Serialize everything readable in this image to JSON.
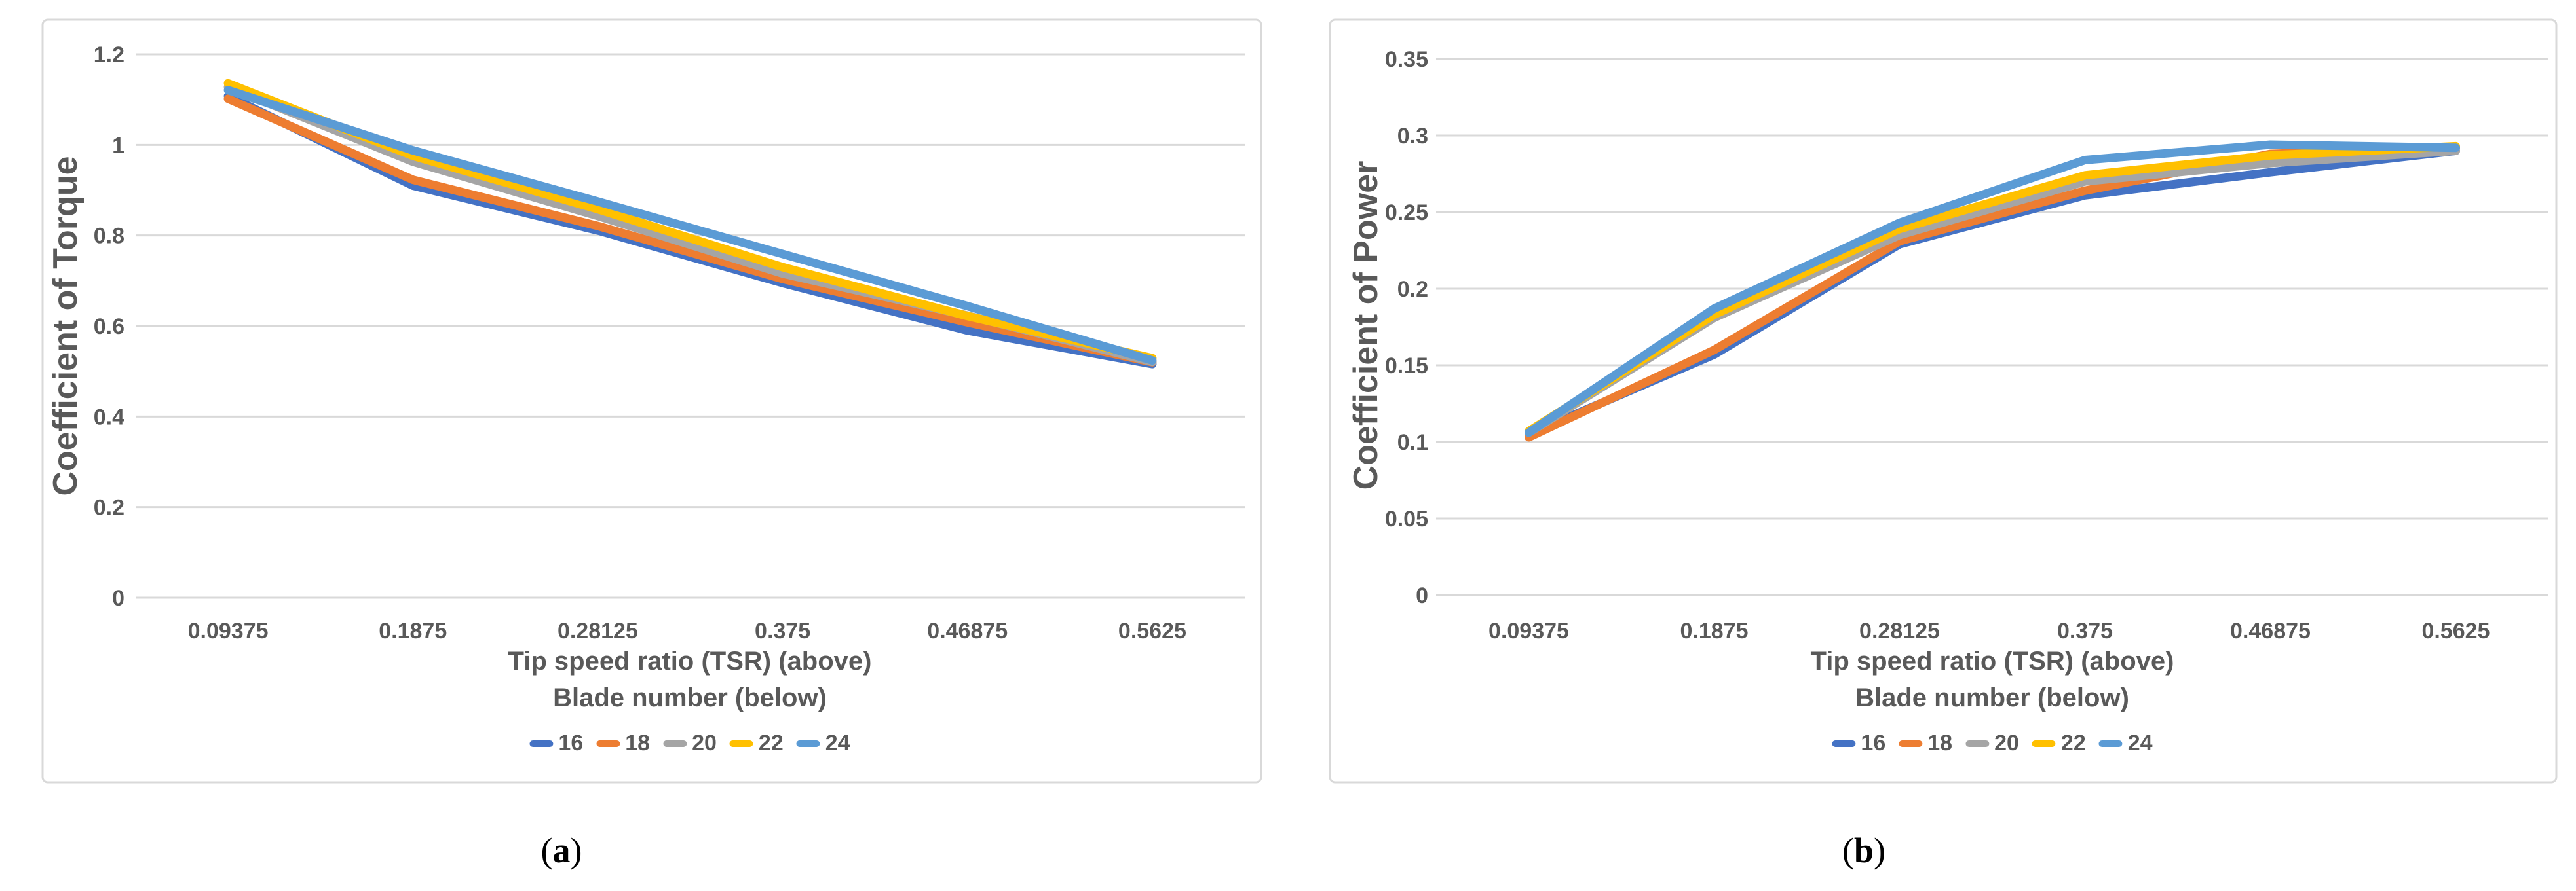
{
  "figure_captions": [
    {
      "open": "(",
      "letter": "a",
      "close": ")"
    },
    {
      "open": "(",
      "letter": "b",
      "close": ")"
    }
  ],
  "colors": {
    "grid": "#D9D9D9",
    "border": "#D9D9D9",
    "text": "#595959"
  },
  "chart_data": [
    {
      "type": "line",
      "title": "",
      "ylabel": "Coefficient of Torque",
      "xlabel_line1": "Tip speed ratio (TSR) (above)",
      "xlabel_line2": "Blade number (below)",
      "categories": [
        "0.09375",
        "0.1875",
        "0.28125",
        "0.375",
        "0.46875",
        "0.5625"
      ],
      "x_values": [
        0.09375,
        0.1875,
        0.28125,
        0.375,
        0.46875,
        0.5625
      ],
      "ylim": [
        0,
        1.2
      ],
      "grid": true,
      "legend_position": "bottom",
      "yticks": [
        {
          "label": "0",
          "value": 0
        },
        {
          "label": "0.2",
          "value": 0.2
        },
        {
          "label": "0.4",
          "value": 0.4
        },
        {
          "label": "0.6",
          "value": 0.6
        },
        {
          "label": "0.8",
          "value": 0.8
        },
        {
          "label": "1",
          "value": 1
        },
        {
          "label": "1.2",
          "value": 1.2
        }
      ],
      "series": [
        {
          "name": "16",
          "color": "#4472C4",
          "values": [
            1.108,
            0.91,
            0.811,
            0.695,
            0.59,
            0.516
          ]
        },
        {
          "name": "18",
          "color": "#ED7D31",
          "values": [
            1.102,
            0.923,
            0.821,
            0.704,
            0.608,
            0.52
          ]
        },
        {
          "name": "20",
          "color": "#A5A5A5",
          "values": [
            1.128,
            0.963,
            0.843,
            0.716,
            0.623,
            0.521
          ]
        },
        {
          "name": "22",
          "color": "#FFC000",
          "values": [
            1.136,
            0.976,
            0.858,
            0.73,
            0.622,
            0.529
          ]
        },
        {
          "name": "24",
          "color": "#5B9BD5",
          "values": [
            1.121,
            0.988,
            0.875,
            0.759,
            0.644,
            0.524
          ]
        }
      ]
    },
    {
      "type": "line",
      "title": "",
      "ylabel": "Coefficient of Power",
      "xlabel_line1": "Tip speed ratio (TSR) (above)",
      "xlabel_line2": "Blade number (below)",
      "categories": [
        "0.09375",
        "0.1875",
        "0.28125",
        "0.375",
        "0.46875",
        "0.5625"
      ],
      "x_values": [
        0.09375,
        0.1875,
        0.28125,
        0.375,
        0.46875,
        0.5625
      ],
      "ylim": [
        0,
        0.35
      ],
      "grid": true,
      "legend_position": "bottom",
      "yticks": [
        {
          "label": "0",
          "value": 0
        },
        {
          "label": "0.05",
          "value": 0.05
        },
        {
          "label": "0.1",
          "value": 0.1
        },
        {
          "label": "0.15",
          "value": 0.15
        },
        {
          "label": "0.2",
          "value": 0.2
        },
        {
          "label": "0.25",
          "value": 0.25
        },
        {
          "label": "0.3",
          "value": 0.3
        },
        {
          "label": "0.35",
          "value": 0.35
        }
      ],
      "series": [
        {
          "name": "16",
          "color": "#4472C4",
          "values": [
            0.105,
            0.157,
            0.229,
            0.261,
            0.276,
            0.29
          ]
        },
        {
          "name": "18",
          "color": "#ED7D31",
          "values": [
            0.103,
            0.16,
            0.231,
            0.264,
            0.288,
            0.292
          ]
        },
        {
          "name": "20",
          "color": "#A5A5A5",
          "values": [
            0.106,
            0.181,
            0.235,
            0.27,
            0.282,
            0.29
          ]
        },
        {
          "name": "22",
          "color": "#FFC000",
          "values": [
            0.107,
            0.183,
            0.239,
            0.274,
            0.287,
            0.293
          ]
        },
        {
          "name": "24",
          "color": "#5B9BD5",
          "values": [
            0.106,
            0.187,
            0.243,
            0.284,
            0.294,
            0.292
          ]
        }
      ]
    }
  ]
}
